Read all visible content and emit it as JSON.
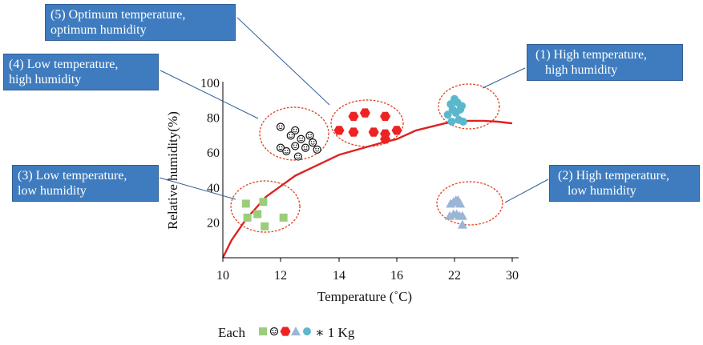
{
  "chart_data": {
    "type": "scatter",
    "title": "",
    "xlabel": "Temperature (˚C)",
    "ylabel": "Relative humidity(%)",
    "x_ticks": [
      "10",
      "12",
      "14",
      "16",
      "22",
      "30"
    ],
    "y_ticks": [
      "20",
      "40",
      "60",
      "80",
      "100"
    ],
    "ylim": [
      0,
      100
    ],
    "grid": false,
    "series": [
      {
        "name": "(1) High temperature, high humidity",
        "marker": "circle",
        "color": "#5bb8cc",
        "x": [
          21.3,
          21.6,
          21.8,
          22.0,
          22.2,
          22.4,
          22.6,
          22.8,
          23.0,
          23.2,
          21.7
        ],
        "y": [
          82,
          88,
          85,
          91,
          83,
          89,
          79,
          85,
          87,
          78,
          78
        ]
      },
      {
        "name": "(2) High temperature, low humidity",
        "marker": "triangle",
        "color": "#9bb5d6",
        "x": [
          21.6,
          21.9,
          22.2,
          22.5,
          22.8,
          23.1,
          21.5,
          21.9,
          22.3,
          22.7,
          23.1
        ],
        "y": [
          31,
          32,
          33,
          33,
          31,
          24,
          24,
          25,
          25,
          24,
          19
        ]
      },
      {
        "name": "(3) Low temperature, low humidity",
        "marker": "square",
        "color": "#9ccc7c",
        "x": [
          10.8,
          11.4,
          10.85,
          11.2,
          11.45,
          12.1
        ],
        "y": [
          31,
          32,
          23,
          25,
          18,
          23
        ]
      },
      {
        "name": "(4) Low temperature, high humidity",
        "marker": "smiley",
        "color": "#111111",
        "x": [
          12.0,
          12.5,
          13.0,
          12.35,
          12.7,
          13.1,
          12.0,
          12.5,
          12.85,
          13.25,
          12.2,
          12.6
        ],
        "y": [
          75,
          73,
          70,
          70,
          68,
          66,
          63,
          64,
          63,
          62,
          61,
          58
        ]
      },
      {
        "name": "(5) Optimum temperature, optimum humidity",
        "marker": "hexagon",
        "color": "#ee2222",
        "x": [
          14.5,
          14.9,
          15.6,
          14.0,
          14.5,
          15.2,
          15.6,
          16.0,
          15.6
        ],
        "y": [
          81,
          83,
          81,
          73,
          72,
          72,
          71,
          73,
          68
        ]
      }
    ],
    "fitted_curve": {
      "name": "",
      "color": "#dd2222",
      "x": [
        10,
        10.3,
        10.8,
        11.5,
        12.5,
        14,
        15.5,
        16,
        18,
        21,
        22,
        24,
        26,
        28,
        30
      ],
      "y": [
        0,
        10,
        22,
        35,
        47,
        59,
        66,
        68,
        73,
        77,
        78,
        78.5,
        78.5,
        78,
        77
      ]
    },
    "annotations": [
      "(1) High temperature,\nhigh humidity",
      "(2) High temperature,\nlow humidity",
      "(3) Low temperature,\nlow humidity",
      "(4) Low temperature,\nhigh humidity",
      "(5) Optimum temperature,\noptimum humidity"
    ],
    "legend_note": {
      "prefix": "Each",
      "suffix": "∗ 1 Kg"
    }
  },
  "callouts": {
    "c1": [
      "(1) High temperature,",
      "high humidity"
    ],
    "c2": [
      "(2) High temperature,",
      "low humidity"
    ],
    "c3": [
      "(3) Low temperature,",
      "low humidity"
    ],
    "c4": [
      "(4) Low temperature,",
      "high humidity"
    ],
    "c5": [
      "(5) Optimum temperature,",
      "optimum humidity"
    ]
  },
  "colors": {
    "callout_bg": "#3f7cbf",
    "ellipse": "#e04a2a"
  }
}
